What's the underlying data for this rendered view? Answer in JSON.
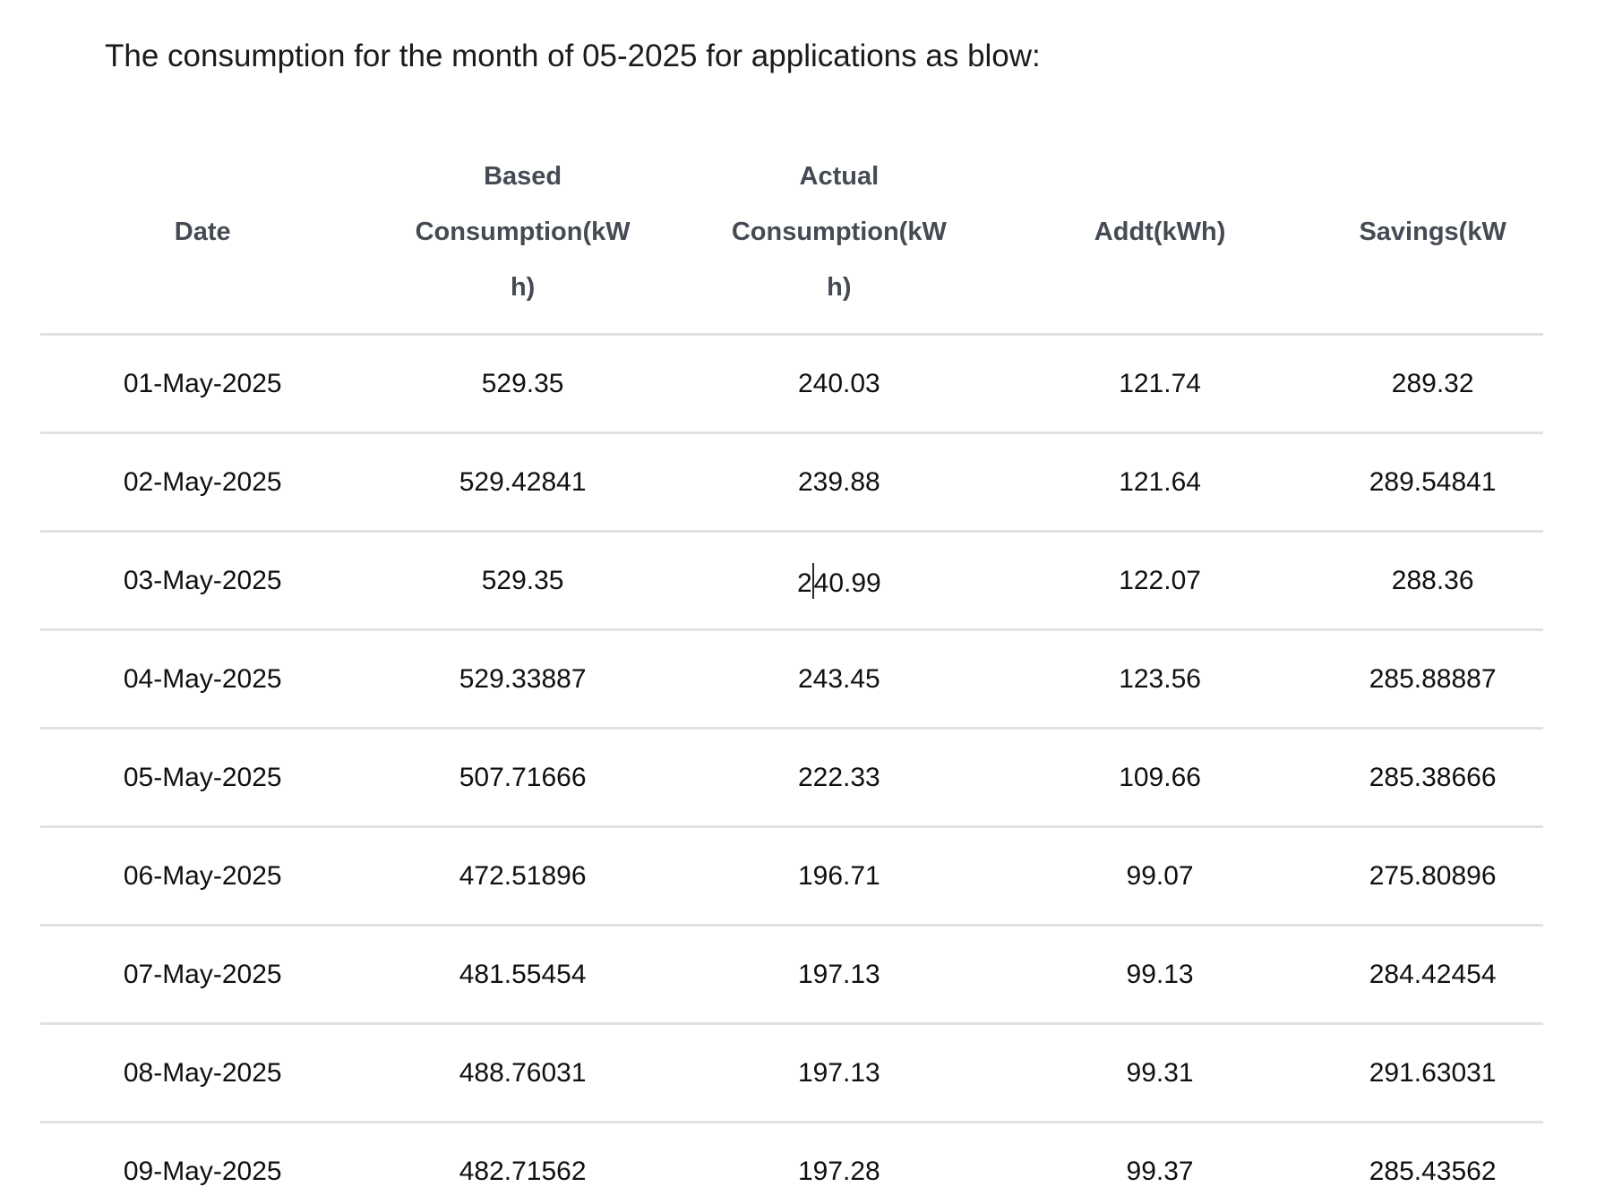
{
  "title": "The consumption for the month of 05-2025 for applications as blow:",
  "table": {
    "columns": [
      {
        "name": "date",
        "label": "Date"
      },
      {
        "name": "based-consumption",
        "label": "Based\nConsumption(kW\nh)"
      },
      {
        "name": "actual-consumption",
        "label": "Actual\nConsumption(kW\nh)"
      },
      {
        "name": "addt",
        "label": "Addt(kWh)"
      },
      {
        "name": "savings",
        "label": "Savings(kW"
      }
    ],
    "rows": [
      [
        "01-May-2025",
        "529.35",
        "240.03",
        "121.74",
        "289.32"
      ],
      [
        "02-May-2025",
        "529.42841",
        "239.88",
        "121.64",
        "289.54841"
      ],
      [
        "03-May-2025",
        "529.35",
        "240.99",
        "122.07",
        "288.36"
      ],
      [
        "04-May-2025",
        "529.33887",
        "243.45",
        "123.56",
        "285.88887"
      ],
      [
        "05-May-2025",
        "507.71666",
        "222.33",
        "109.66",
        "285.38666"
      ],
      [
        "06-May-2025",
        "472.51896",
        "196.71",
        "99.07",
        "275.80896"
      ],
      [
        "07-May-2025",
        "481.55454",
        "197.13",
        "99.13",
        "284.42454"
      ],
      [
        "08-May-2025",
        "488.76031",
        "197.13",
        "99.31",
        "291.63031"
      ],
      [
        "09-May-2025",
        "482.71562",
        "197.28",
        "99.37",
        "285.43562"
      ]
    ],
    "edit_caret": {
      "row_index": 2,
      "col_index": 2,
      "before": "2",
      "after": "40.99"
    }
  },
  "colors": {
    "separator": "#dee2e6",
    "header_text": "#454b54",
    "body_text": "#101010",
    "title_text": "#1b1b1b",
    "bottom_strip": "#4d80ba"
  }
}
